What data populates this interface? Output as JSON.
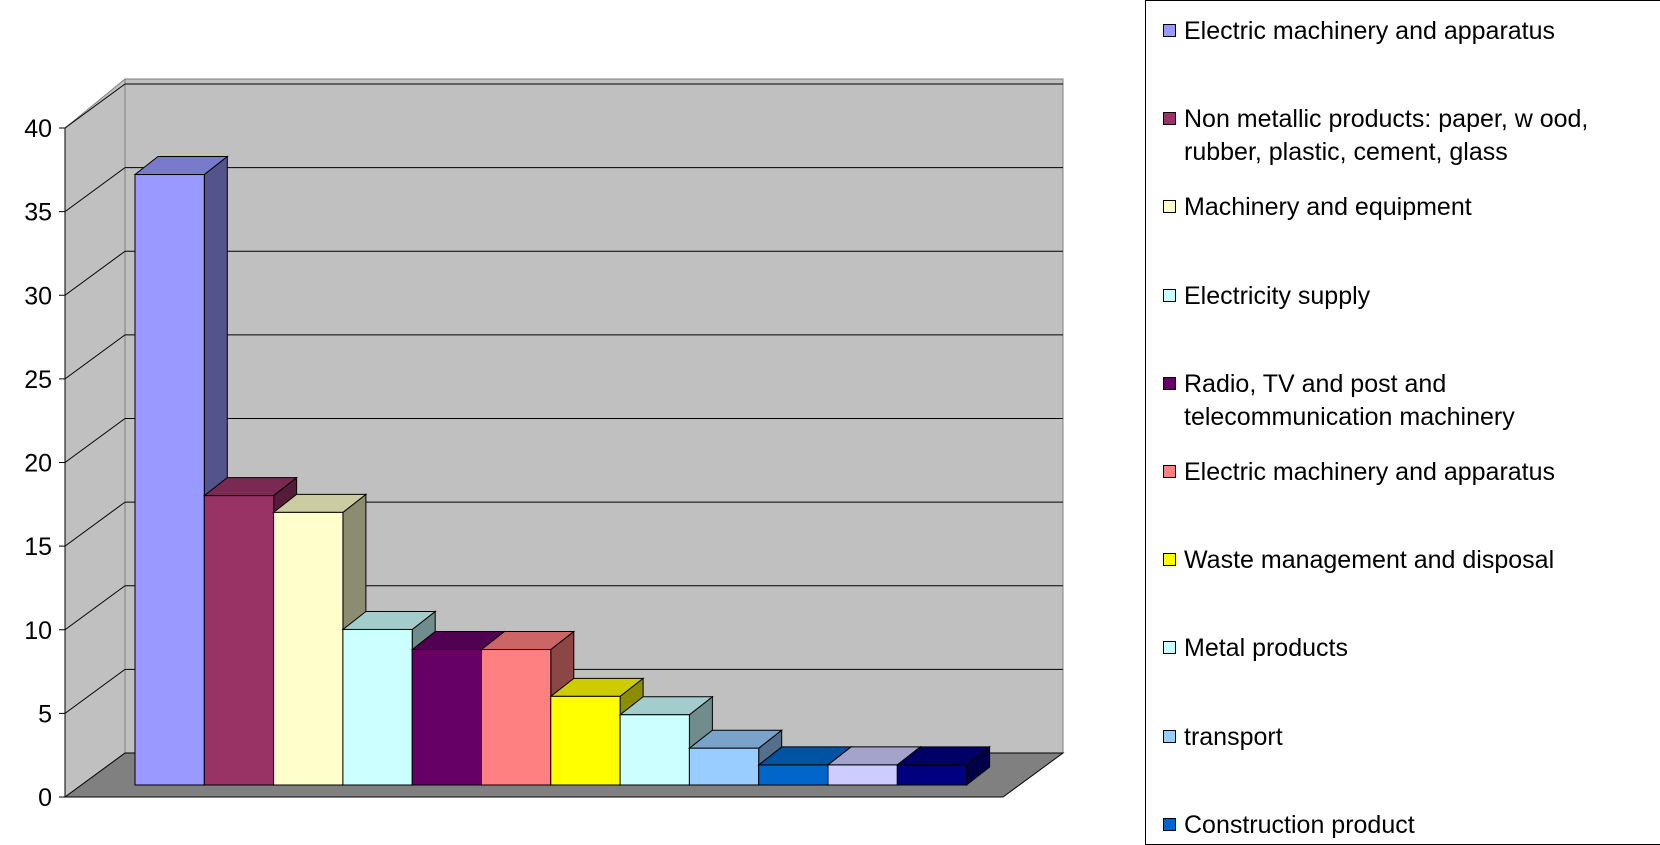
{
  "chart_data": {
    "type": "bar",
    "ylim": [
      0,
      40
    ],
    "yticks": [
      "0",
      "5",
      "10",
      "15",
      "20",
      "25",
      "30",
      "35",
      "40"
    ],
    "grid": true,
    "legend_position": "right",
    "series": [
      {
        "name": "Electric machinery and apparatus",
        "value": 36.5,
        "color": "#9999ff"
      },
      {
        "name": "Non metallic products: paper, w ood, rubber, plastic, cement, glass",
        "value": 17.3,
        "color": "#993366"
      },
      {
        "name": "Machinery and equipment",
        "value": 16.3,
        "color": "#ffffcc"
      },
      {
        "name": "Electricity supply",
        "value": 9.3,
        "color": "#ccffff"
      },
      {
        "name": "Radio, TV and post and telecommunication machinery",
        "value": 8.1,
        "color": "#660066"
      },
      {
        "name": "Electric machinery and apparatus",
        "value": 8.1,
        "color": "#ff8080"
      },
      {
        "name": "Waste management and disposal",
        "value": 5.3,
        "color": "#ffff00"
      },
      {
        "name": "Metal products",
        "value": 4.2,
        "color": "#ccffff"
      },
      {
        "name": "transport",
        "value": 2.2,
        "color": "#99ccff"
      },
      {
        "name": "Construction product",
        "value": 1.2,
        "color": "#0066cc"
      },
      {
        "name": "",
        "value": 1.2,
        "color": "#ccccff"
      },
      {
        "name": "",
        "value": 1.2,
        "color": "#000080"
      }
    ]
  }
}
